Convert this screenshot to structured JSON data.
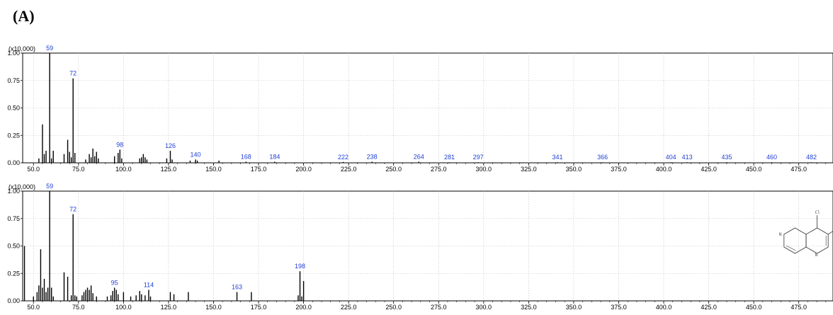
{
  "panel_label": "(A)",
  "chart_data": [
    {
      "type": "bar",
      "scale_label": "(x10,000)",
      "xlim": [
        44,
        494
      ],
      "ylim": [
        0,
        1.0
      ],
      "x_ticks": [
        50.0,
        75.0,
        100.0,
        125.0,
        150.0,
        175.0,
        200.0,
        225.0,
        250.0,
        275.0,
        300.0,
        325.0,
        350.0,
        375.0,
        400.0,
        425.0,
        450.0,
        475.0
      ],
      "y_ticks": [
        0.0,
        0.25,
        0.5,
        0.75,
        1.0
      ],
      "grid": true,
      "peaks": [
        {
          "x": 53,
          "y": 0.04
        },
        {
          "x": 55,
          "y": 0.35
        },
        {
          "x": 56,
          "y": 0.08
        },
        {
          "x": 57,
          "y": 0.11
        },
        {
          "x": 59,
          "y": 1.0,
          "label": "59"
        },
        {
          "x": 60,
          "y": 0.04
        },
        {
          "x": 61,
          "y": 0.11
        },
        {
          "x": 67,
          "y": 0.08
        },
        {
          "x": 69,
          "y": 0.21
        },
        {
          "x": 70,
          "y": 0.1
        },
        {
          "x": 71,
          "y": 0.05
        },
        {
          "x": 72,
          "y": 0.77,
          "label": "72"
        },
        {
          "x": 73,
          "y": 0.09
        },
        {
          "x": 79,
          "y": 0.03
        },
        {
          "x": 81,
          "y": 0.08
        },
        {
          "x": 82,
          "y": 0.05
        },
        {
          "x": 83,
          "y": 0.13
        },
        {
          "x": 84,
          "y": 0.06
        },
        {
          "x": 85,
          "y": 0.1
        },
        {
          "x": 86,
          "y": 0.04
        },
        {
          "x": 95,
          "y": 0.06
        },
        {
          "x": 97,
          "y": 0.09
        },
        {
          "x": 98,
          "y": 0.12,
          "label": "98"
        },
        {
          "x": 99,
          "y": 0.04
        },
        {
          "x": 109,
          "y": 0.04
        },
        {
          "x": 110,
          "y": 0.05
        },
        {
          "x": 111,
          "y": 0.08
        },
        {
          "x": 112,
          "y": 0.05
        },
        {
          "x": 113,
          "y": 0.03
        },
        {
          "x": 124,
          "y": 0.04
        },
        {
          "x": 126,
          "y": 0.11,
          "label": "126"
        },
        {
          "x": 127,
          "y": 0.03
        },
        {
          "x": 137,
          "y": 0.02
        },
        {
          "x": 140,
          "y": 0.03,
          "label": "140"
        },
        {
          "x": 141,
          "y": 0.02
        },
        {
          "x": 153,
          "y": 0.02
        },
        {
          "x": 168,
          "y": 0.01,
          "label": "168"
        },
        {
          "x": 184,
          "y": 0.01,
          "label": "184"
        },
        {
          "x": 222,
          "y": 0.008,
          "label": "222"
        },
        {
          "x": 238,
          "y": 0.01,
          "label": "238"
        },
        {
          "x": 264,
          "y": 0.01,
          "label": "264"
        },
        {
          "x": 281,
          "y": 0.005,
          "label": "281"
        },
        {
          "x": 297,
          "y": 0.005,
          "label": "297"
        },
        {
          "x": 341,
          "y": 0.005,
          "label": "341"
        },
        {
          "x": 366,
          "y": 0.005,
          "label": "366"
        },
        {
          "x": 404,
          "y": 0.005,
          "label": "404"
        },
        {
          "x": 413,
          "y": 0.005,
          "label": "413"
        },
        {
          "x": 435,
          "y": 0.005,
          "label": "435"
        },
        {
          "x": 460,
          "y": 0.005,
          "label": "460"
        },
        {
          "x": 482,
          "y": 0.005,
          "label": "482"
        }
      ]
    },
    {
      "type": "bar",
      "scale_label": "(x10,000)",
      "xlim": [
        44,
        494
      ],
      "ylim": [
        0,
        1.0
      ],
      "x_ticks": [
        50.0,
        75.0,
        100.0,
        125.0,
        150.0,
        175.0,
        200.0,
        225.0,
        250.0,
        275.0,
        300.0,
        325.0,
        350.0,
        375.0,
        400.0,
        425.0,
        450.0,
        475.0
      ],
      "y_ticks": [
        0.0,
        0.25,
        0.5,
        0.75,
        1.0
      ],
      "grid": true,
      "structure_atoms": [
        "Cl",
        "Cl",
        "N",
        "N"
      ],
      "peaks": [
        {
          "x": 45,
          "y": 0.5
        },
        {
          "x": 50,
          "y": 0.04
        },
        {
          "x": 52,
          "y": 0.08
        },
        {
          "x": 53,
          "y": 0.14
        },
        {
          "x": 54,
          "y": 0.47
        },
        {
          "x": 55,
          "y": 0.12
        },
        {
          "x": 56,
          "y": 0.2
        },
        {
          "x": 57,
          "y": 0.08
        },
        {
          "x": 58,
          "y": 0.12
        },
        {
          "x": 59,
          "y": 1.0,
          "label": "59"
        },
        {
          "x": 60,
          "y": 0.12
        },
        {
          "x": 61,
          "y": 0.04
        },
        {
          "x": 67,
          "y": 0.26
        },
        {
          "x": 69,
          "y": 0.22
        },
        {
          "x": 71,
          "y": 0.05
        },
        {
          "x": 72,
          "y": 0.79,
          "label": "72"
        },
        {
          "x": 73,
          "y": 0.05
        },
        {
          "x": 74,
          "y": 0.04
        },
        {
          "x": 77,
          "y": 0.05
        },
        {
          "x": 78,
          "y": 0.08
        },
        {
          "x": 79,
          "y": 0.1
        },
        {
          "x": 80,
          "y": 0.12
        },
        {
          "x": 81,
          "y": 0.1
        },
        {
          "x": 82,
          "y": 0.14
        },
        {
          "x": 83,
          "y": 0.07
        },
        {
          "x": 85,
          "y": 0.04
        },
        {
          "x": 91,
          "y": 0.04
        },
        {
          "x": 93,
          "y": 0.05
        },
        {
          "x": 94,
          "y": 0.09
        },
        {
          "x": 95,
          "y": 0.12,
          "label": "95"
        },
        {
          "x": 96,
          "y": 0.1
        },
        {
          "x": 97,
          "y": 0.06
        },
        {
          "x": 100,
          "y": 0.08
        },
        {
          "x": 104,
          "y": 0.04
        },
        {
          "x": 107,
          "y": 0.05
        },
        {
          "x": 109,
          "y": 0.09
        },
        {
          "x": 110,
          "y": 0.06
        },
        {
          "x": 112,
          "y": 0.05
        },
        {
          "x": 114,
          "y": 0.1,
          "label": "114"
        },
        {
          "x": 115,
          "y": 0.04
        },
        {
          "x": 126,
          "y": 0.08
        },
        {
          "x": 128,
          "y": 0.06
        },
        {
          "x": 136,
          "y": 0.08
        },
        {
          "x": 163,
          "y": 0.08,
          "label": "163"
        },
        {
          "x": 171,
          "y": 0.08
        },
        {
          "x": 197,
          "y": 0.05
        },
        {
          "x": 198,
          "y": 0.27,
          "label": "198"
        },
        {
          "x": 199,
          "y": 0.04
        },
        {
          "x": 200,
          "y": 0.18
        }
      ]
    }
  ]
}
